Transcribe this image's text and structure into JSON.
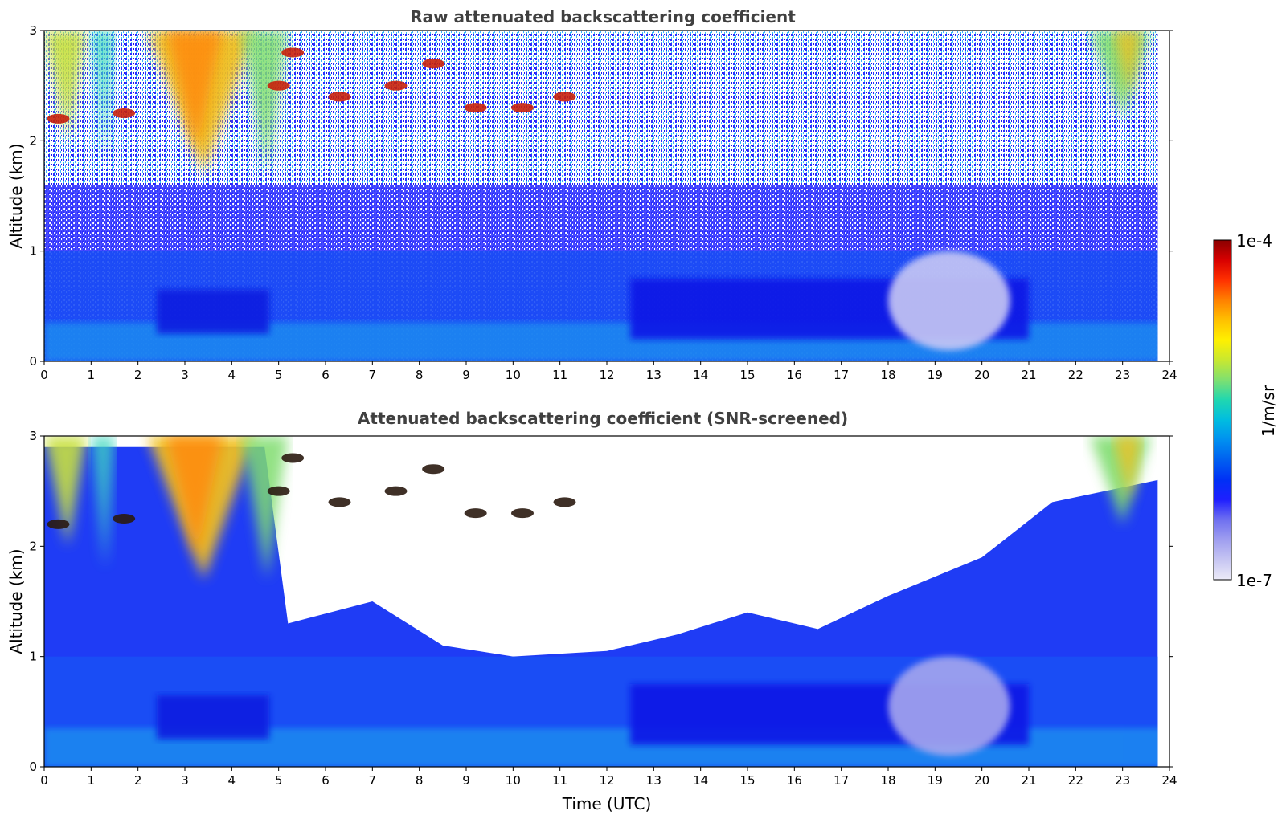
{
  "chart_data": [
    {
      "type": "heatmap",
      "title": "Raw attenuated backscattering coefficient",
      "xlabel": "",
      "ylabel": "Altitude (km)",
      "xlim": [
        0,
        24
      ],
      "ylim": [
        0,
        3
      ],
      "xticks": [
        "0",
        "1",
        "2",
        "3",
        "4",
        "5",
        "6",
        "7",
        "8",
        "9",
        "10",
        "11",
        "12",
        "13",
        "14",
        "15",
        "16",
        "17",
        "18",
        "19",
        "20",
        "21",
        "22",
        "23",
        "24"
      ],
      "yticks": [
        "0",
        "1",
        "2",
        "3"
      ],
      "data_end_hour": 23.75,
      "clouds": [
        {
          "x": 0.3,
          "y": 2.2
        },
        {
          "x": 1.7,
          "y": 2.25
        },
        {
          "x": 5.3,
          "y": 2.8
        },
        {
          "x": 5.0,
          "y": 2.5
        },
        {
          "x": 6.3,
          "y": 2.4
        },
        {
          "x": 7.5,
          "y": 2.5
        },
        {
          "x": 8.3,
          "y": 2.7
        },
        {
          "x": 9.2,
          "y": 2.3
        },
        {
          "x": 10.2,
          "y": 2.3
        },
        {
          "x": 11.1,
          "y": 2.4
        }
      ]
    },
    {
      "type": "heatmap",
      "title": "Attenuated backscattering coefficient (SNR-screened)",
      "xlabel": "Time (UTC)",
      "ylabel": "Altitude (km)",
      "xlim": [
        0,
        24
      ],
      "ylim": [
        0,
        3
      ],
      "xticks": [
        "0",
        "1",
        "2",
        "3",
        "4",
        "5",
        "6",
        "7",
        "8",
        "9",
        "10",
        "11",
        "12",
        "13",
        "14",
        "15",
        "16",
        "17",
        "18",
        "19",
        "20",
        "21",
        "22",
        "23",
        "24"
      ],
      "yticks": [
        "0",
        "1",
        "2",
        "3"
      ],
      "data_end_hour": 23.75,
      "screen_boundary": [
        {
          "x": 0,
          "y": 2.9
        },
        {
          "x": 4.7,
          "y": 2.9
        },
        {
          "x": 5.2,
          "y": 1.3
        },
        {
          "x": 7.0,
          "y": 1.5
        },
        {
          "x": 8.5,
          "y": 1.1
        },
        {
          "x": 10.0,
          "y": 1.0
        },
        {
          "x": 12.0,
          "y": 1.05
        },
        {
          "x": 13.5,
          "y": 1.2
        },
        {
          "x": 15.0,
          "y": 1.4
        },
        {
          "x": 16.5,
          "y": 1.25
        },
        {
          "x": 18.0,
          "y": 1.55
        },
        {
          "x": 20.0,
          "y": 1.9
        },
        {
          "x": 21.5,
          "y": 2.4
        },
        {
          "x": 23.75,
          "y": 2.6
        }
      ]
    }
  ],
  "colorbar": {
    "label": "1/m/sr",
    "max_label": "1e-4",
    "min_label": "1e-7",
    "colors": [
      "#ecebf8",
      "#c6c5f2",
      "#9f9ef0",
      "#6f70f0",
      "#1f1fff",
      "#0030f5",
      "#0060f0",
      "#0090f0",
      "#00bde0",
      "#20d7b0",
      "#7fe070",
      "#c8e830",
      "#fff000",
      "#ffc000",
      "#ff8000",
      "#ff3000",
      "#d80000",
      "#8a0000"
    ]
  }
}
